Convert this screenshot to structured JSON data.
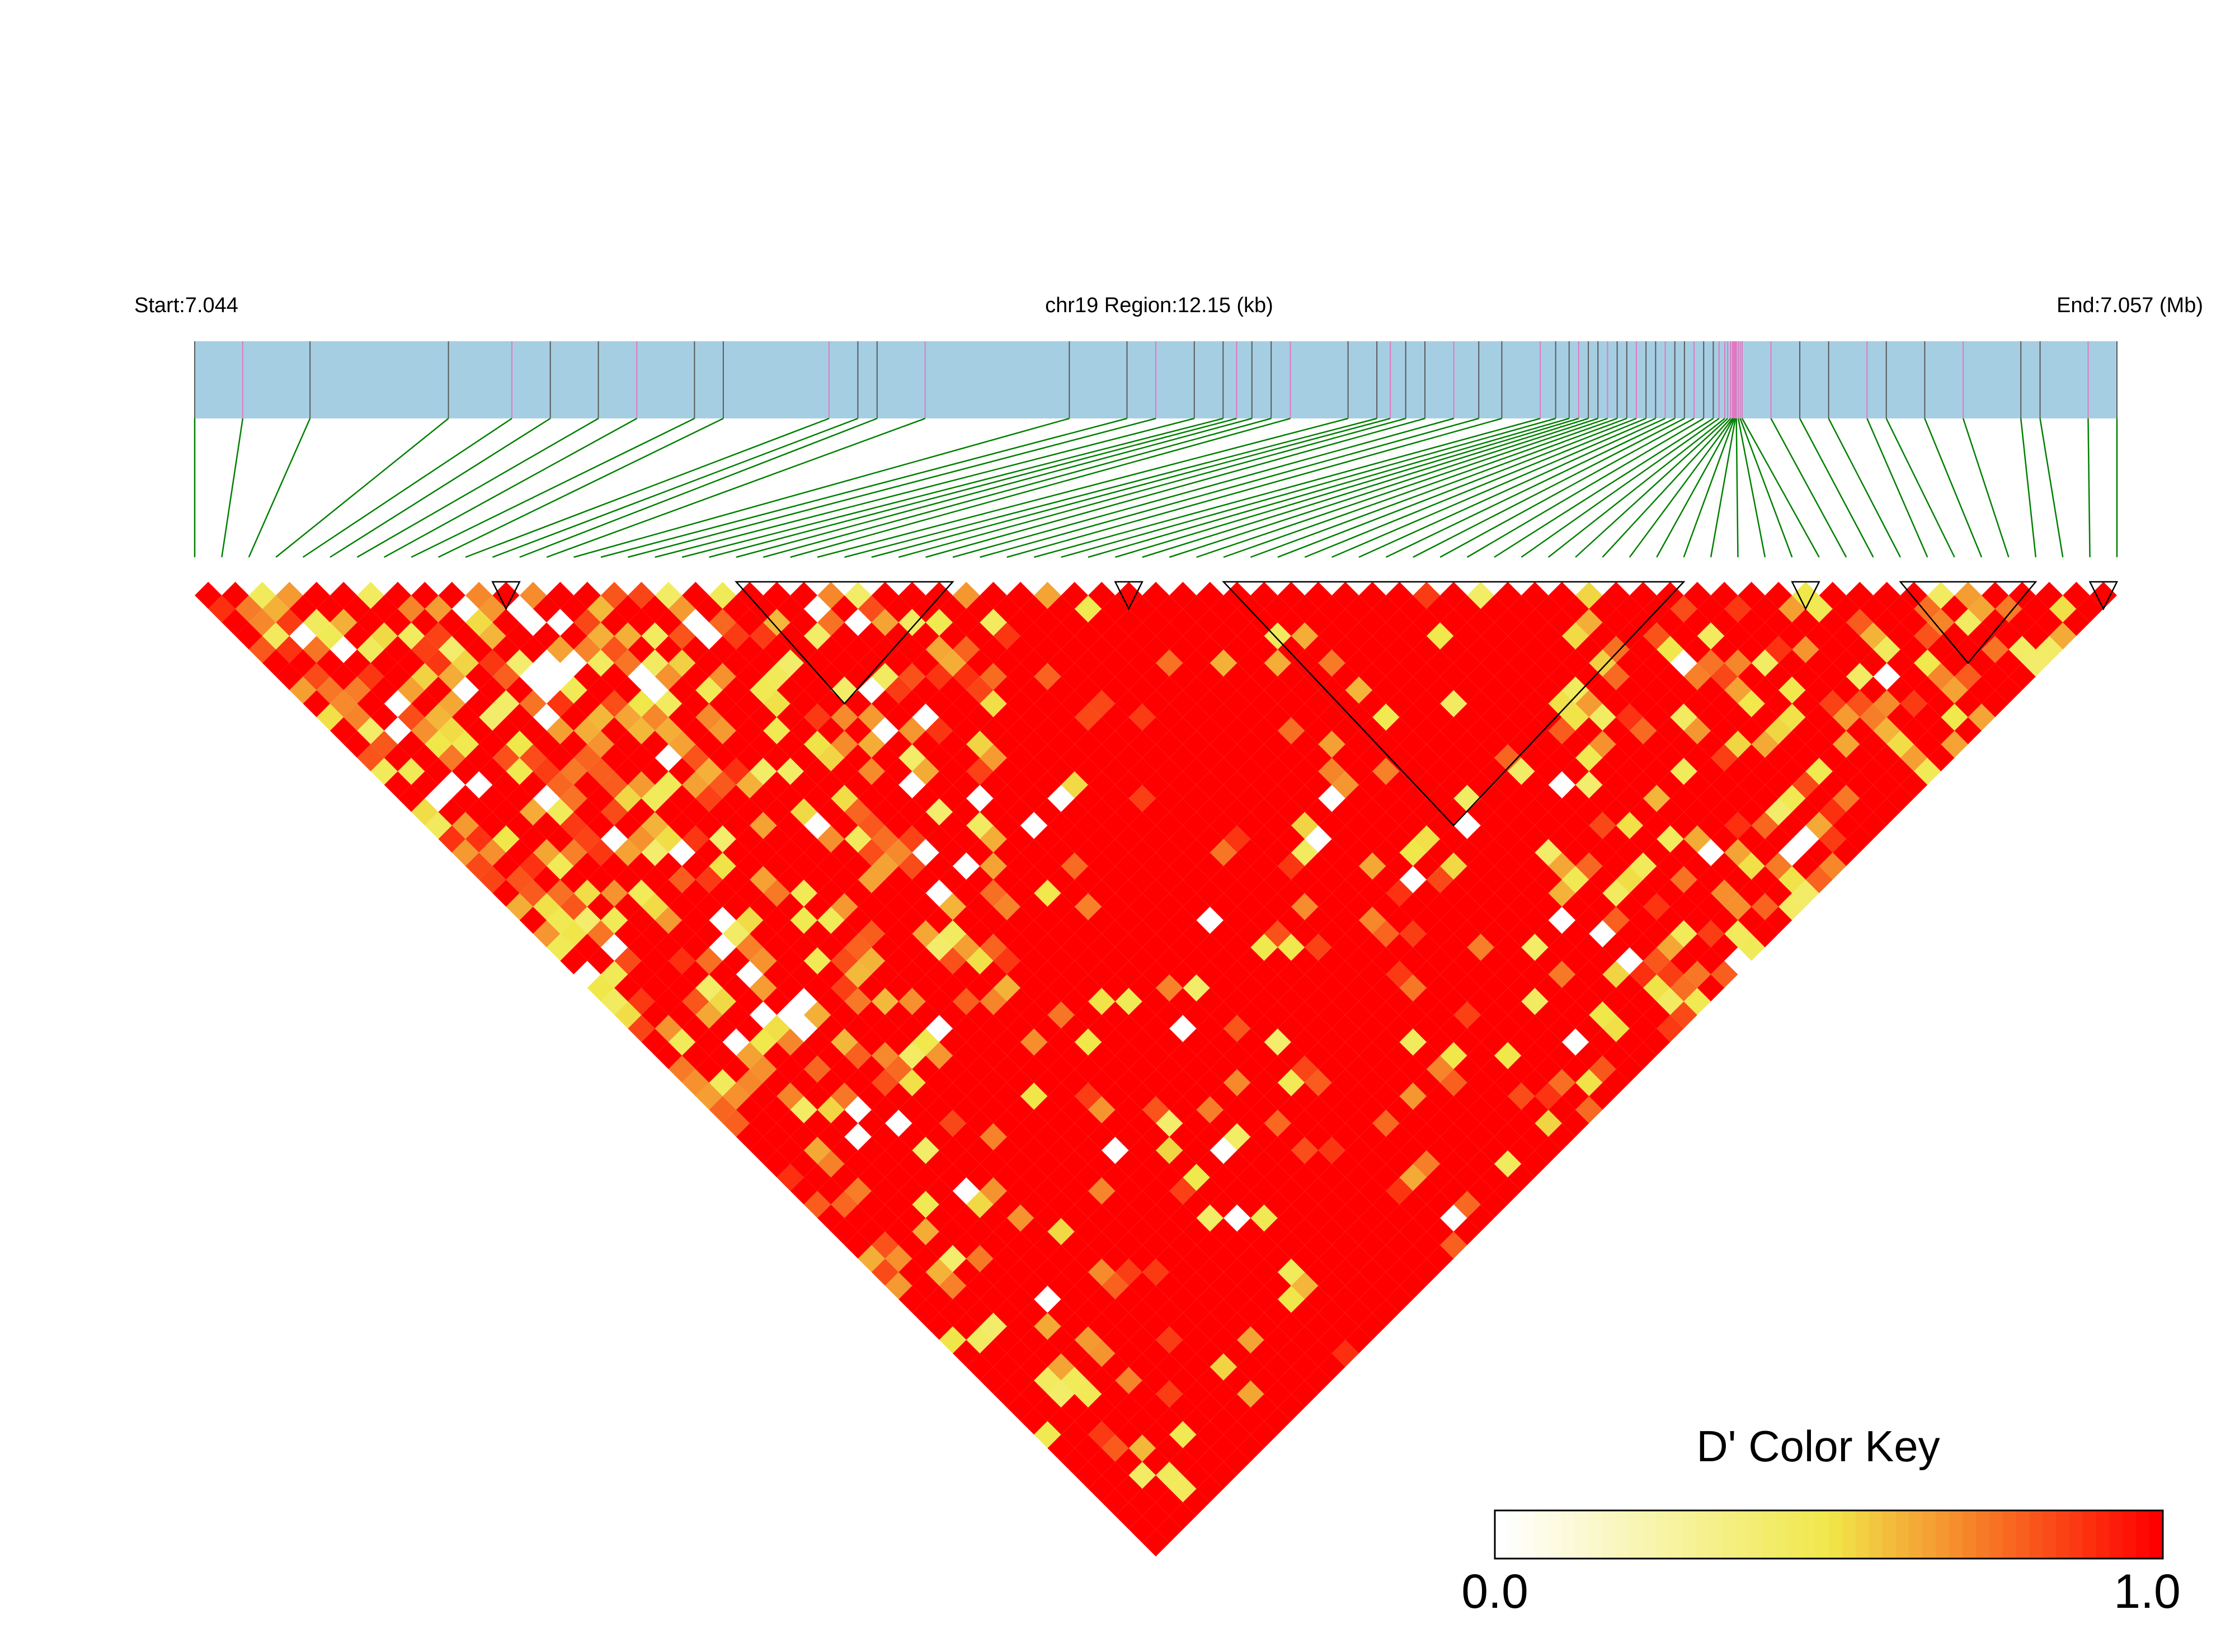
{
  "header": {
    "start_label": "Start:7.044",
    "region_label": "chr19 Region:12.15 (kb)",
    "end_label": "End:7.057 (Mb)"
  },
  "legend": {
    "title": "D' Color Key",
    "min_label": "0.0",
    "max_label": "1.0",
    "colors": [
      "#ffffff",
      "#f0e84a",
      "#ff0000"
    ]
  },
  "colors": {
    "gene_track": "#a6cee3",
    "snp_line_dark": "#5a5a5a",
    "snp_line_pink": "#e377c2",
    "connector": "#008000",
    "block_outline": "#000000"
  },
  "chart_data": {
    "type": "heatmap",
    "metric": "D'",
    "chromosome": "chr19",
    "region_start_mb": 7.044,
    "region_end_mb": 7.057,
    "region_length_kb": 12.15,
    "snp_count": 72,
    "snp_positions_mb": [
      7.044,
      7.0443,
      7.0448,
      7.0458,
      7.0462,
      7.0465,
      7.0468,
      7.0471,
      7.0475,
      7.0477,
      7.0484,
      7.0486,
      7.0488,
      7.0493,
      7.0503,
      7.0507,
      7.0509,
      7.0512,
      7.0514,
      7.0515,
      7.0516,
      7.0518,
      7.052,
      7.0524,
      7.0526,
      7.0527,
      7.0528,
      7.053,
      7.0532,
      7.0534,
      7.0536,
      7.0539,
      7.054,
      7.0541,
      7.0542,
      7.0543,
      7.0544,
      7.0545,
      7.0546,
      7.0547,
      7.0548,
      7.0549,
      7.055,
      7.0551,
      7.0552,
      7.0553,
      7.0554,
      7.0555,
      7.0556,
      7.0557,
      7.0558,
      7.0559,
      7.056,
      7.0561,
      7.0562,
      7.0563,
      7.0564,
      7.0565,
      7.0566,
      7.0567,
      7.0568,
      7.0569,
      7.057,
      7.0562,
      7.0563,
      7.0564,
      7.0565,
      7.0566,
      7.0567,
      7.0568,
      7.0569,
      7.057
    ],
    "color_scale": {
      "min": 0.0,
      "max": 1.0
    },
    "haplotype_blocks": [
      [
        11,
        12
      ],
      [
        20,
        28
      ],
      [
        34,
        35
      ],
      [
        38,
        55
      ],
      [
        59,
        60
      ],
      [
        63,
        68
      ],
      [
        70,
        71
      ]
    ],
    "note_values": "D' values mostly near 1.0 (red) with scattered lower values (orange/yellow/white), concentrated in the left half and in off-diagonal bands."
  }
}
